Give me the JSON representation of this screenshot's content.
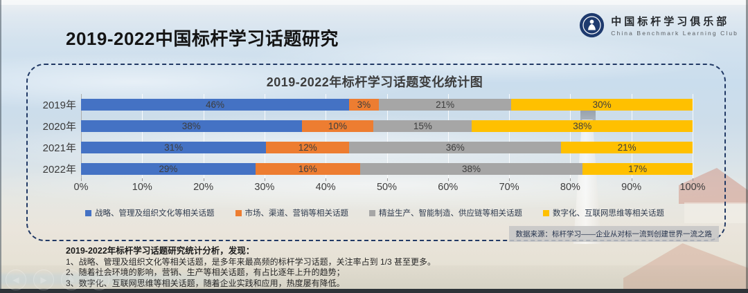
{
  "header": {
    "title": "2019-2022中国标杆学习话题研究",
    "logo": {
      "name_cn": "中国标杆学习俱乐部",
      "name_en": "China Benchmark Learning Club",
      "badge_color": "#1e3a6e"
    }
  },
  "chart_data": {
    "type": "bar",
    "stacked": true,
    "orientation": "horizontal",
    "title": "2019-2022年标杆学习话题变化统计图",
    "categories": [
      "2019年",
      "2020年",
      "2021年",
      "2022年"
    ],
    "series": [
      {
        "name": "战略、管理及组织文化等相关话题",
        "color": "#4472C4",
        "values": [
          46,
          38,
          31,
          29
        ]
      },
      {
        "name": "市场、渠道、营销等相关话题",
        "color": "#ED7D31",
        "values": [
          3,
          10,
          12,
          16
        ]
      },
      {
        "name": "精益生产、智能制造、供应链等相关话题",
        "color": "#A6A6A6",
        "values": [
          21,
          15,
          36,
          38
        ]
      },
      {
        "name": "数字化、互联网思维等相关话题",
        "color": "#FFC000",
        "values": [
          30,
          38,
          21,
          17
        ]
      }
    ],
    "value_suffix": "%",
    "x_axis_ticks": [
      "0%",
      "10%",
      "20%",
      "30%",
      "40%",
      "50%",
      "60%",
      "70%",
      "80%",
      "90%",
      "100%"
    ],
    "xlim": [
      0,
      100
    ],
    "grid": true,
    "legend_position": "bottom"
  },
  "source_note": "数据来源：标杆学习——企业从对标一流到创建世界一流之路",
  "analysis": {
    "heading": "2019-2022年标杆学习话题研究统计分析，发现：",
    "points": [
      "1、战略、管理及组织文化等相关话题，是多年来最高频的标杆学习话题，关注率占到 1/3 甚至更多。",
      "2、随着社会环境的影响，营销、生产等相关话题，有占比逐年上升的趋势；",
      "3、数字化、互联网思维等相关话题，随着企业实践和应用，热度屡有降低。"
    ]
  },
  "player_controls": [
    {
      "name": "previous",
      "glyph": "◀"
    },
    {
      "name": "next",
      "glyph": "▶"
    },
    {
      "name": "pen",
      "glyph": "✎"
    },
    {
      "name": "grid",
      "glyph": "▦"
    }
  ]
}
